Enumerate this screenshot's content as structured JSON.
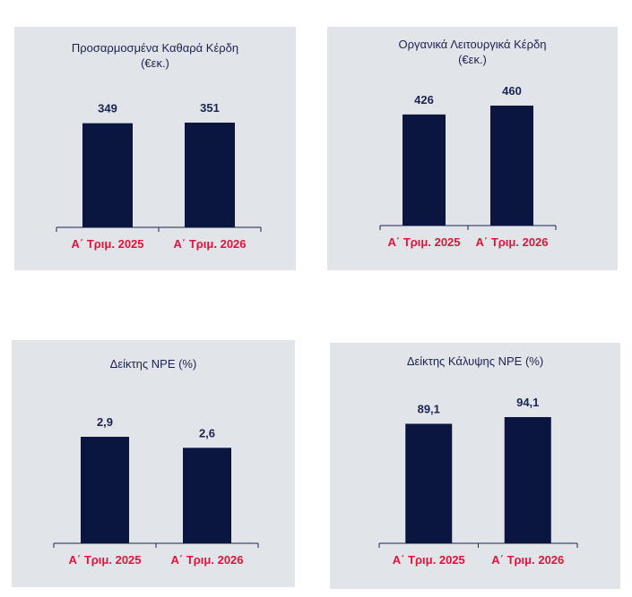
{
  "colors": {
    "bar": "#0b1640",
    "category_label": "#e3123a",
    "value_label": "#1b2350",
    "panel_bg": "#e1e4e8",
    "axis": "#1b2350"
  },
  "chart_data": [
    {
      "type": "bar",
      "title": "Προσαρμοσμένα Καθαρά Κέρδη",
      "subtitle": "(€εκ.)",
      "categories": [
        "Α΄ Τριμ. 2025",
        "Α΄ Τριμ. 2026"
      ],
      "values": [
        349,
        351
      ],
      "data_labels": [
        "349",
        "351"
      ]
    },
    {
      "type": "bar",
      "title": "Οργανικά Λειτουργικά Κέρδη",
      "subtitle": "(€εκ.)",
      "categories": [
        "Α΄ Τριμ. 2025",
        "Α΄ Τριμ. 2026"
      ],
      "values": [
        426,
        460
      ],
      "data_labels": [
        "426",
        "460"
      ]
    },
    {
      "type": "bar",
      "title": "Δείκτης NPE (%)",
      "subtitle": "",
      "categories": [
        "Α΄ Τριμ. 2025",
        "Α΄ Τριμ. 2026"
      ],
      "values": [
        2.9,
        2.6
      ],
      "data_labels": [
        "2,9",
        "2,6"
      ]
    },
    {
      "type": "bar",
      "title": "Δείκτης Κάλυψης NPE (%)",
      "subtitle": "",
      "categories": [
        "Α΄ Τριμ. 2025",
        "Α΄ Τριμ. 2026"
      ],
      "values": [
        89.1,
        94.1
      ],
      "data_labels": [
        "89,1",
        "94,1"
      ]
    }
  ]
}
